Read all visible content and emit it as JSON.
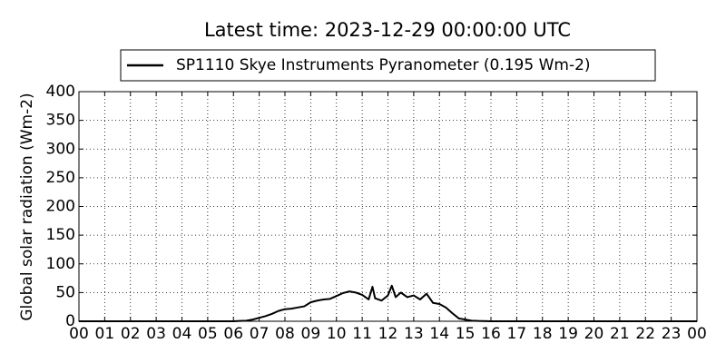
{
  "chart_data": {
    "type": "line",
    "title": "Latest time: 2023-12-29 00:00:00 UTC",
    "ylabel": "Global solar radiation (Wm-2)",
    "x": [
      0,
      6,
      6.25,
      6.5,
      6.75,
      7,
      7.25,
      7.5,
      7.75,
      8,
      8.25,
      8.5,
      8.75,
      9,
      9.25,
      9.5,
      9.75,
      10,
      10.25,
      10.5,
      10.75,
      11,
      11.25,
      11.4,
      11.5,
      11.75,
      12,
      12.15,
      12.3,
      12.5,
      12.75,
      13,
      13.25,
      13.5,
      13.75,
      14,
      14.25,
      14.5,
      14.75,
      15,
      15.25,
      15.5,
      16,
      24
    ],
    "series": [
      {
        "name": "SP1110 Skye Instruments Pyranometer (0.195 Wm-2)",
        "color": "#000000",
        "values": [
          0,
          0,
          0.5,
          1,
          3,
          6,
          9,
          13,
          18,
          21,
          22,
          24,
          26,
          33,
          36,
          38,
          39,
          44,
          49,
          52,
          50,
          46,
          38,
          60,
          40,
          36,
          45,
          62,
          42,
          50,
          42,
          45,
          38,
          48,
          32,
          30,
          24,
          14,
          5,
          3,
          1,
          0.5,
          0,
          0
        ]
      }
    ],
    "xlim": [
      0,
      24
    ],
    "xticks": [
      {
        "value": 0,
        "label": "00"
      },
      {
        "value": 1,
        "label": "01"
      },
      {
        "value": 2,
        "label": "02"
      },
      {
        "value": 3,
        "label": "03"
      },
      {
        "value": 4,
        "label": "04"
      },
      {
        "value": 5,
        "label": "05"
      },
      {
        "value": 6,
        "label": "06"
      },
      {
        "value": 7,
        "label": "07"
      },
      {
        "value": 8,
        "label": "08"
      },
      {
        "value": 9,
        "label": "09"
      },
      10,
      11,
      12,
      13,
      14,
      15,
      16,
      17,
      18,
      19,
      20,
      21,
      22,
      23,
      {
        "value": 24,
        "label": "00"
      }
    ],
    "ylim": [
      0,
      400
    ],
    "yticks": [
      0,
      50,
      100,
      150,
      200,
      250,
      300,
      350,
      400
    ],
    "grid": true,
    "legend": "top"
  }
}
